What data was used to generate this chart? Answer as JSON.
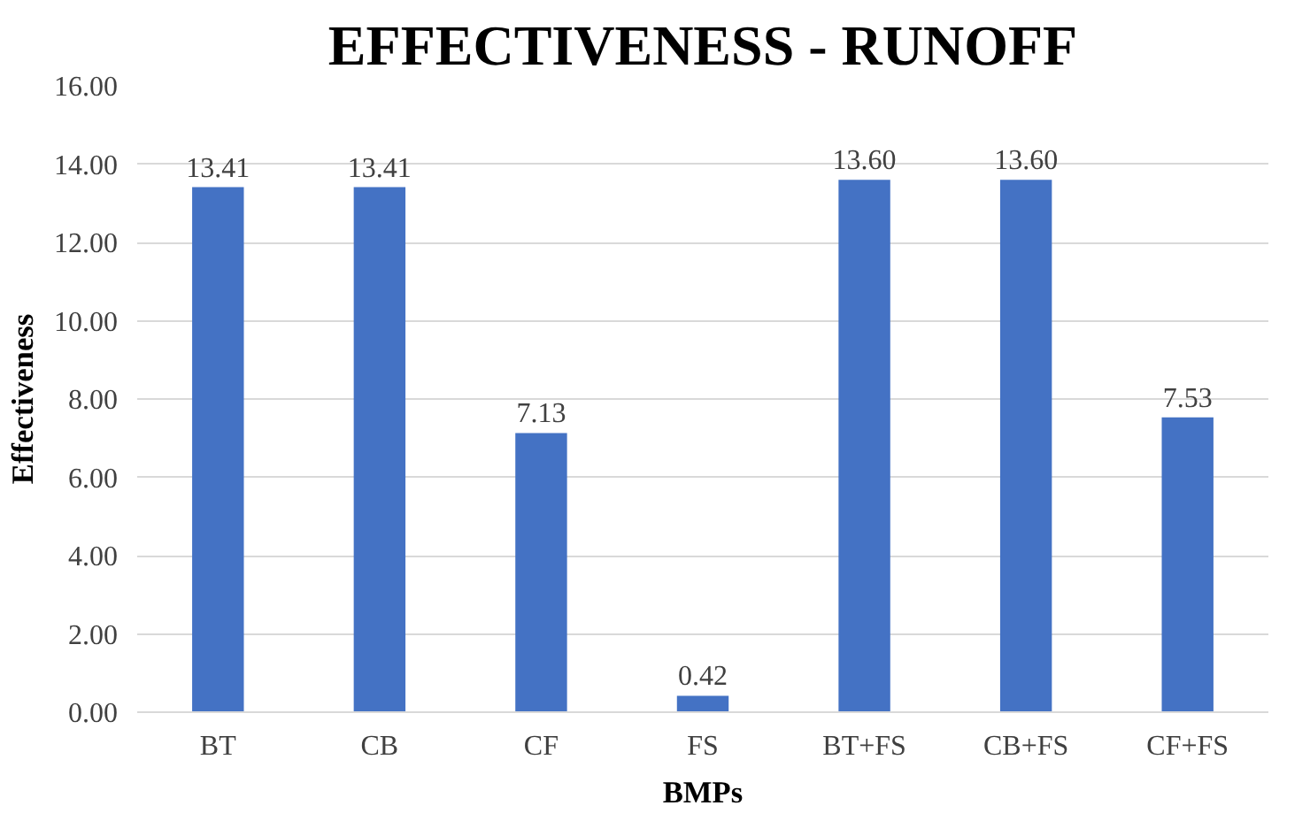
{
  "chart_data": {
    "type": "bar",
    "title": "EFFECTIVENESS - RUNOFF",
    "xlabel": "BMPs",
    "ylabel": "Effectiveness",
    "categories": [
      "BT",
      "CB",
      "CF",
      "FS",
      "BT+FS",
      "CB+FS",
      "CF+FS"
    ],
    "values": [
      13.41,
      13.41,
      7.13,
      0.42,
      13.6,
      13.6,
      7.53
    ],
    "value_labels": [
      "13.41",
      "13.41",
      "7.13",
      "0.42",
      "13.60",
      "13.60",
      "7.53"
    ],
    "color": "#4472c4",
    "ylim": [
      0,
      16
    ],
    "yticks": [
      {
        "value": 0,
        "label": "0.00"
      },
      {
        "value": 2,
        "label": "2.00"
      },
      {
        "value": 4,
        "label": "4.00"
      },
      {
        "value": 6,
        "label": "6.00"
      },
      {
        "value": 8,
        "label": "8.00"
      },
      {
        "value": 10,
        "label": "10.00"
      },
      {
        "value": 12,
        "label": "12.00"
      },
      {
        "value": 14,
        "label": "14.00"
      },
      {
        "value": 16,
        "label": "16.00"
      }
    ],
    "grid": "y"
  }
}
